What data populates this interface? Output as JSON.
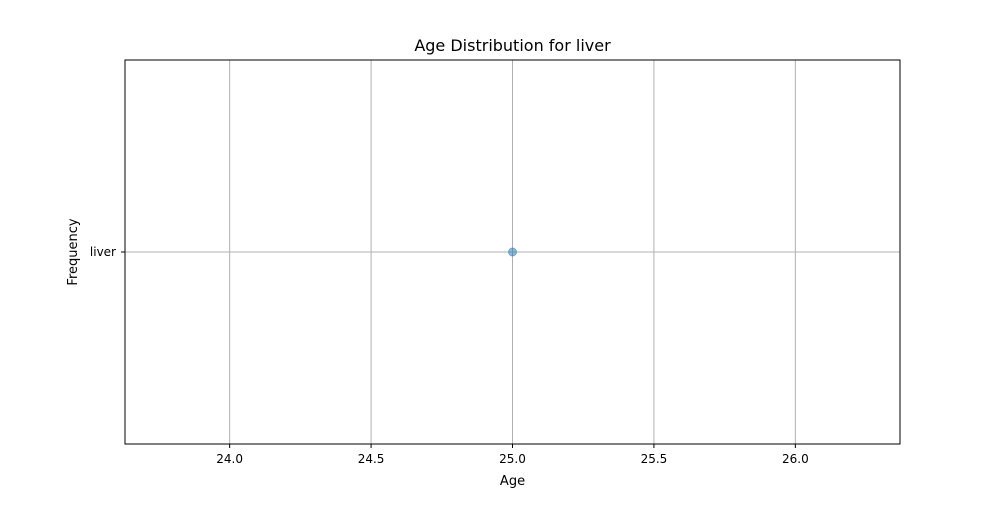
{
  "chart_data": {
    "type": "scatter",
    "title": "Age Distribution for liver",
    "xlabel": "Age",
    "ylabel": "Frequency",
    "xlim": [
      23.63,
      26.37
    ],
    "xticks": [
      24.0,
      24.5,
      25.0,
      25.5,
      26.0
    ],
    "xtick_labels": [
      "24.0",
      "24.5",
      "25.0",
      "25.5",
      "26.0"
    ],
    "categories": [
      "liver"
    ],
    "points": [
      {
        "x": 25.0,
        "category": "liver"
      }
    ],
    "grid": true,
    "marker_color": "#1f77b4",
    "marker_alpha": 0.5
  }
}
